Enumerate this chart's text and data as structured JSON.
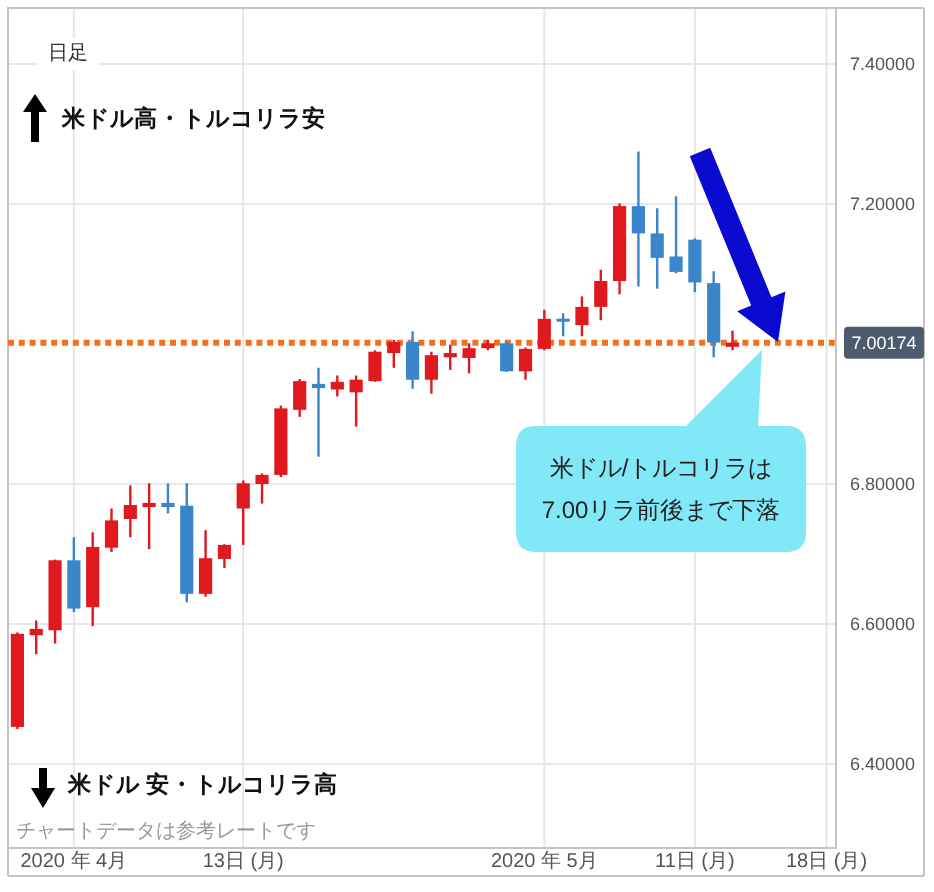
{
  "chart_data": {
    "type": "candlestick",
    "title": "日足",
    "categories": [
      null,
      null,
      null,
      "2020 年 4月",
      null,
      null,
      null,
      null,
      null,
      null,
      null,
      null,
      "13日 (月)",
      null,
      null,
      null,
      null,
      null,
      null,
      null,
      null,
      null,
      null,
      null,
      null,
      null,
      null,
      null,
      "2020 年 5月",
      null,
      null,
      null,
      null,
      null,
      null,
      null,
      "11日 (月)",
      null,
      null,
      null,
      null,
      null,
      null,
      "18日 (月)"
    ],
    "ohlc": [
      [
        6.453,
        6.588,
        6.45,
        6.586
      ],
      [
        6.584,
        6.605,
        6.557,
        6.593
      ],
      [
        6.591,
        6.692,
        6.572,
        6.691
      ],
      [
        6.691,
        6.724,
        6.617,
        6.622
      ],
      [
        6.624,
        6.731,
        6.597,
        6.71
      ],
      [
        6.709,
        6.765,
        6.703,
        6.748
      ],
      [
        6.75,
        6.798,
        6.724,
        6.77
      ],
      [
        6.767,
        6.801,
        6.707,
        6.773
      ],
      [
        6.773,
        6.801,
        6.758,
        6.767
      ],
      [
        6.769,
        6.801,
        6.631,
        6.643
      ],
      [
        6.643,
        6.734,
        6.639,
        6.694
      ],
      [
        6.693,
        6.714,
        6.68,
        6.713
      ],
      [
        6.765,
        6.805,
        6.713,
        6.801
      ],
      [
        6.8,
        6.815,
        6.772,
        6.813
      ],
      [
        6.813,
        6.912,
        6.81,
        6.908
      ],
      [
        6.906,
        6.95,
        6.896,
        6.947
      ],
      [
        6.943,
        6.966,
        6.839,
        6.937
      ],
      [
        6.935,
        6.955,
        6.925,
        6.946
      ],
      [
        6.931,
        6.955,
        6.882,
        6.949
      ],
      [
        6.947,
        6.991,
        6.946,
        6.989
      ],
      [
        6.987,
        7.006,
        6.966,
        7.003
      ],
      [
        7.003,
        7.018,
        6.936,
        6.949
      ],
      [
        6.949,
        6.989,
        6.929,
        6.984
      ],
      [
        6.981,
        6.999,
        6.963,
        6.987
      ],
      [
        6.98,
        7.001,
        6.958,
        6.994
      ],
      [
        6.994,
        7.006,
        6.991,
        7.001
      ],
      [
        7.001,
        7.004,
        6.96,
        6.961
      ],
      [
        6.961,
        6.995,
        6.949,
        6.993
      ],
      [
        6.993,
        7.049,
        6.991,
        7.036
      ],
      [
        7.035,
        7.044,
        7.011,
        7.033
      ],
      [
        7.027,
        7.068,
        7.011,
        7.053
      ],
      [
        7.053,
        7.106,
        7.034,
        7.09
      ],
      [
        7.09,
        7.201,
        7.071,
        7.197
      ],
      [
        7.197,
        7.275,
        7.082,
        7.158
      ],
      [
        7.158,
        7.194,
        7.079,
        7.123
      ],
      [
        7.125,
        7.211,
        7.101,
        7.103
      ],
      [
        7.149,
        7.151,
        7.074,
        7.088
      ],
      [
        7.087,
        7.104,
        6.981,
        7.002
      ],
      [
        6.996,
        7.019,
        6.991,
        7.002
      ],
      null,
      null,
      null,
      null,
      null
    ],
    "colors": [
      "#e0191f",
      "#e0191f",
      "#e0191f",
      "#3b85cb",
      "#e0191f",
      "#e0191f",
      "#e0191f",
      "#e0191f",
      "#3b85cb",
      "#3b85cb",
      "#e0191f",
      "#e0191f",
      "#e0191f",
      "#e0191f",
      "#e0191f",
      "#e0191f",
      "#3b85cb",
      "#e0191f",
      "#e0191f",
      "#e0191f",
      "#e0191f",
      "#3b85cb",
      "#e0191f",
      "#e0191f",
      "#e0191f",
      "#e0191f",
      "#3b85cb",
      "#e0191f",
      "#e0191f",
      "#3b85cb",
      "#e0191f",
      "#e0191f",
      "#e0191f",
      "#3b85cb",
      "#3b85cb",
      "#3b85cb",
      "#3b85cb",
      "#3b85cb",
      "#e0191f",
      null,
      null,
      null,
      null,
      null
    ],
    "ylim": [
      6.28,
      7.48
    ],
    "yticks": [
      {
        "value": 6.4,
        "label": "6.40000"
      },
      {
        "value": 6.6,
        "label": "6.60000"
      },
      {
        "value": 6.8,
        "label": "6.80000"
      },
      {
        "value": 7.2,
        "label": "7.20000"
      },
      {
        "value": 7.4,
        "label": "7.40000"
      }
    ],
    "grid": true,
    "ref_lines": [
      {
        "axis": "y",
        "value": 7.00174,
        "label": "7.00174",
        "color": "#f2711c",
        "line_style": "dotted"
      }
    ],
    "annotations": [
      "米ドル高・トルコリラ安",
      "米ドル 安・トルコリラ高",
      "チャートデータは参考レートです",
      "米ドル/トルコリラは\n7.00リラ前後まで下落"
    ]
  }
}
